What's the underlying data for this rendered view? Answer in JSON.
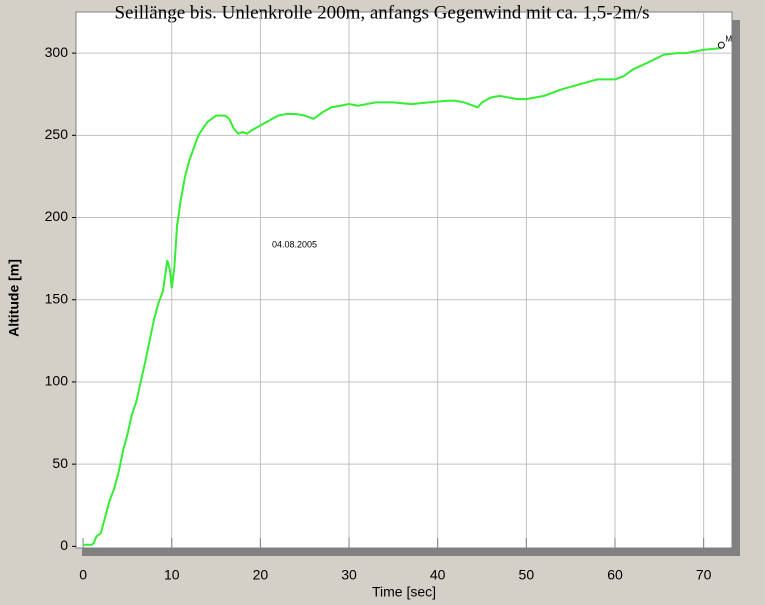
{
  "chart_data": {
    "type": "line",
    "title": "Seillänge bis. Unlenkrolle 200m, anfangs Gegenwind mit ca. 1,5-2m/s",
    "x_label": "Time [sec]",
    "y_label": "Altitude [m]",
    "annotations": [
      "04.08.2005",
      "M"
    ],
    "x": [
      0,
      1,
      1.2,
      1.5,
      2,
      2.5,
      3,
      3.5,
      4,
      4.5,
      5,
      5.5,
      6,
      6.5,
      7,
      7.5,
      8,
      8.5,
      9,
      9.5,
      9.8,
      10,
      10.3,
      10.6,
      11,
      11.5,
      12,
      13,
      14,
      15,
      16,
      16.5,
      17,
      17.5,
      18,
      18.5,
      19,
      20,
      21,
      22,
      23,
      24,
      25,
      26,
      27,
      28,
      29,
      30,
      31,
      32,
      33,
      35,
      37,
      39,
      41,
      42,
      43,
      44,
      44.5,
      45,
      46,
      47,
      48,
      49,
      50,
      52,
      54,
      56,
      58,
      60,
      61,
      62,
      64,
      65.5,
      67,
      68,
      69,
      70,
      72
    ],
    "values": [
      1,
      1,
      2,
      6,
      8,
      18,
      28,
      35,
      45,
      58,
      68,
      80,
      88,
      100,
      112,
      125,
      138,
      148,
      155,
      174,
      168,
      157,
      170,
      195,
      210,
      225,
      235,
      250,
      258,
      262,
      262,
      260,
      254,
      251,
      252,
      251,
      253,
      256,
      259,
      262,
      263,
      263,
      262,
      260,
      264,
      267,
      268,
      269,
      268,
      269,
      270,
      270,
      269,
      270,
      271,
      271,
      270,
      268,
      267,
      270,
      273,
      274,
      273,
      272,
      272,
      274,
      278,
      281,
      284,
      284,
      286,
      290,
      295,
      299,
      300,
      300,
      301,
      302,
      303
    ],
    "color": "#33ee33",
    "xlim": [
      -0.8,
      73.2
    ],
    "ylim": [
      -1,
      325
    ],
    "xticks": [
      0,
      10,
      20,
      30,
      40,
      50,
      60,
      70
    ],
    "yticks": [
      0,
      50,
      100,
      150,
      200,
      250,
      300
    ],
    "grid": true
  }
}
